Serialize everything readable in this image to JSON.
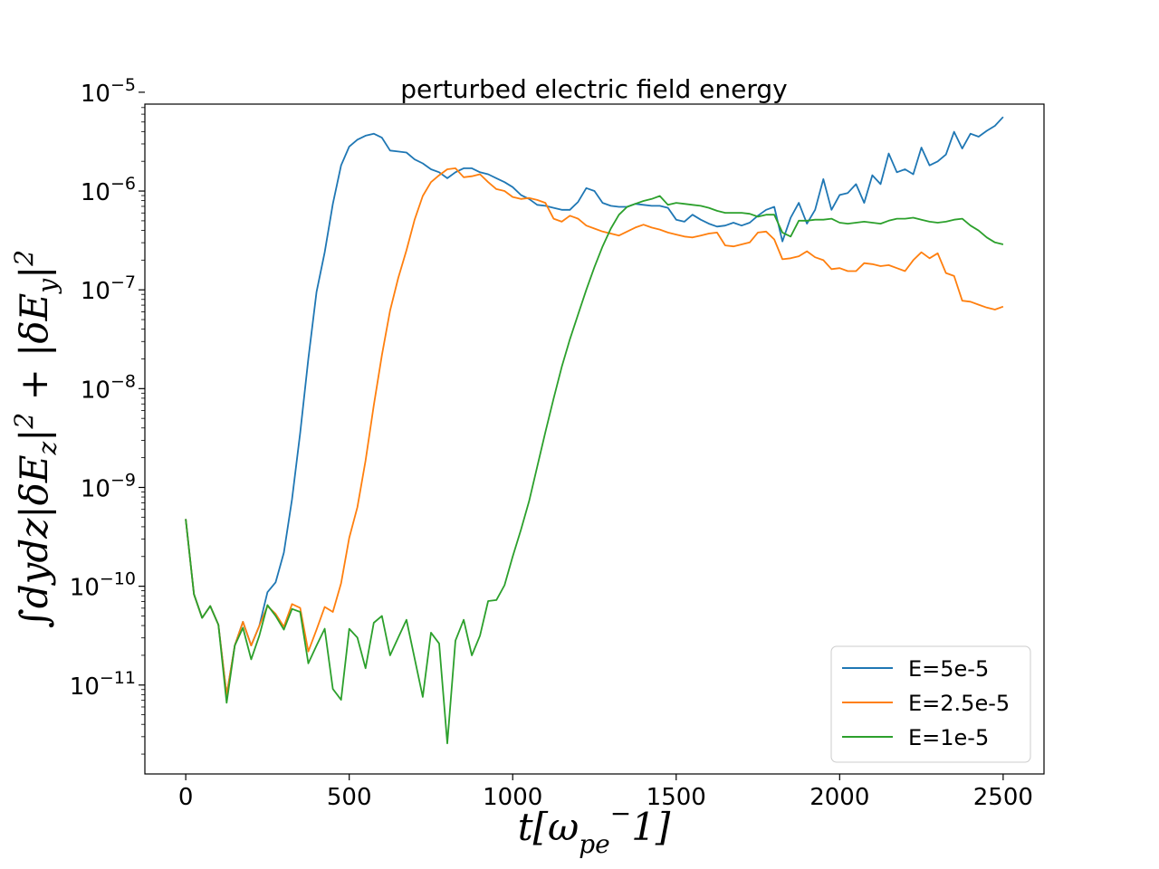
{
  "chart_data": {
    "type": "line",
    "title": "perturbed electric field energy",
    "xlabel": "t[ω_pe^-1]",
    "ylabel": "∫dydz|δE_z|² + |δE_y|²",
    "xlim": [
      -125,
      2625
    ],
    "ylim_log10": [
      -11.9,
      -5.12
    ],
    "yscale": "log",
    "grid": false,
    "legend_position": "lower-right",
    "x_ticks": [
      {
        "value": 0,
        "label": "0"
      },
      {
        "value": 500,
        "label": "500"
      },
      {
        "value": 1000,
        "label": "1000"
      },
      {
        "value": 1500,
        "label": "1500"
      },
      {
        "value": 2000,
        "label": "2000"
      },
      {
        "value": 2500,
        "label": "2500"
      }
    ],
    "y_ticks": [
      {
        "exp": -5,
        "label": "10",
        "sup": "−5"
      },
      {
        "exp": -6,
        "label": "10",
        "sup": "−6"
      },
      {
        "exp": -7,
        "label": "10",
        "sup": "−7"
      },
      {
        "exp": -8,
        "label": "10",
        "sup": "−8"
      },
      {
        "exp": -9,
        "label": "10",
        "sup": "−9"
      },
      {
        "exp": -10,
        "label": "10",
        "sup": "−10"
      },
      {
        "exp": -11,
        "label": "10",
        "sup": "−11"
      }
    ],
    "x": [
      0,
      25,
      50,
      75,
      100,
      125,
      150,
      175,
      200,
      225,
      250,
      275,
      300,
      325,
      350,
      375,
      400,
      425,
      450,
      475,
      500,
      525,
      550,
      575,
      600,
      625,
      650,
      675,
      700,
      725,
      750,
      775,
      800,
      825,
      850,
      875,
      900,
      925,
      950,
      975,
      1000,
      1025,
      1050,
      1075,
      1100,
      1125,
      1150,
      1175,
      1200,
      1225,
      1250,
      1275,
      1300,
      1325,
      1350,
      1375,
      1400,
      1425,
      1450,
      1475,
      1500,
      1525,
      1550,
      1575,
      1600,
      1625,
      1650,
      1675,
      1700,
      1725,
      1750,
      1775,
      1800,
      1825,
      1850,
      1875,
      1900,
      1925,
      1950,
      1975,
      2000,
      2025,
      2050,
      2075,
      2100,
      2125,
      2150,
      2175,
      2200,
      2225,
      2250,
      2275,
      2300,
      2325,
      2350,
      2375,
      2400,
      2425,
      2450,
      2475,
      2500
    ],
    "series": [
      {
        "name": "E=5e-5",
        "color": "#1f77b4",
        "log10_values": [
          -9.32,
          -10.08,
          -10.32,
          -10.2,
          -10.39,
          -11.1,
          -10.6,
          -10.36,
          -10.6,
          -10.4,
          -10.06,
          -9.96,
          -9.66,
          -9.12,
          -8.45,
          -7.7,
          -7.02,
          -6.62,
          -6.13,
          -5.74,
          -5.55,
          -5.48,
          -5.44,
          -5.42,
          -5.46,
          -5.59,
          -5.6,
          -5.61,
          -5.68,
          -5.72,
          -5.78,
          -5.81,
          -5.87,
          -5.81,
          -5.77,
          -5.77,
          -5.81,
          -5.83,
          -5.87,
          -5.91,
          -5.96,
          -6.04,
          -6.08,
          -6.14,
          -6.15,
          -6.17,
          -6.19,
          -6.19,
          -6.11,
          -5.97,
          -6.0,
          -6.12,
          -6.15,
          -6.16,
          -6.16,
          -6.13,
          -6.14,
          -6.15,
          -6.15,
          -6.17,
          -6.29,
          -6.31,
          -6.24,
          -6.29,
          -6.33,
          -6.36,
          -6.35,
          -6.32,
          -6.35,
          -6.32,
          -6.25,
          -6.19,
          -6.16,
          -6.51,
          -6.27,
          -6.12,
          -6.33,
          -6.19,
          -5.88,
          -6.19,
          -6.04,
          -6.02,
          -5.93,
          -6.12,
          -5.84,
          -5.93,
          -5.62,
          -5.81,
          -5.78,
          -5.83,
          -5.56,
          -5.74,
          -5.7,
          -5.63,
          -5.4,
          -5.57,
          -5.42,
          -5.45,
          -5.39,
          -5.34,
          -5.25
        ]
      },
      {
        "name": "E=2.5e-5",
        "color": "#ff7f0e",
        "log10_values": [
          -9.32,
          -10.08,
          -10.32,
          -10.2,
          -10.39,
          -11.1,
          -10.6,
          -10.36,
          -10.6,
          -10.4,
          -10.2,
          -10.28,
          -10.41,
          -10.18,
          -10.22,
          -10.66,
          -10.44,
          -10.21,
          -10.26,
          -9.97,
          -9.51,
          -9.2,
          -8.73,
          -8.17,
          -7.66,
          -7.21,
          -6.88,
          -6.6,
          -6.29,
          -6.05,
          -5.91,
          -5.84,
          -5.78,
          -5.77,
          -5.86,
          -5.85,
          -5.83,
          -5.91,
          -5.98,
          -6.0,
          -6.06,
          -6.08,
          -6.07,
          -6.09,
          -6.12,
          -6.28,
          -6.31,
          -6.25,
          -6.28,
          -6.35,
          -6.38,
          -6.41,
          -6.43,
          -6.45,
          -6.41,
          -6.37,
          -6.34,
          -6.37,
          -6.39,
          -6.42,
          -6.44,
          -6.46,
          -6.47,
          -6.45,
          -6.43,
          -6.42,
          -6.55,
          -6.56,
          -6.54,
          -6.52,
          -6.42,
          -6.41,
          -6.49,
          -6.69,
          -6.68,
          -6.66,
          -6.61,
          -6.67,
          -6.7,
          -6.79,
          -6.78,
          -6.81,
          -6.81,
          -6.73,
          -6.74,
          -6.76,
          -6.75,
          -6.78,
          -6.81,
          -6.7,
          -6.62,
          -6.68,
          -6.63,
          -6.83,
          -6.86,
          -7.11,
          -7.12,
          -7.15,
          -7.18,
          -7.2,
          -7.17
        ]
      },
      {
        "name": "E=1e-5",
        "color": "#2ca02c",
        "log10_values": [
          -9.32,
          -10.08,
          -10.32,
          -10.2,
          -10.39,
          -11.18,
          -10.6,
          -10.42,
          -10.74,
          -10.5,
          -10.19,
          -10.3,
          -10.44,
          -10.23,
          -10.26,
          -10.78,
          -10.6,
          -10.43,
          -11.04,
          -11.15,
          -10.43,
          -10.52,
          -10.83,
          -10.37,
          -10.3,
          -10.7,
          -10.52,
          -10.34,
          -10.73,
          -11.12,
          -10.47,
          -10.58,
          -11.59,
          -10.55,
          -10.34,
          -10.7,
          -10.5,
          -10.15,
          -10.14,
          -9.99,
          -9.7,
          -9.43,
          -9.14,
          -8.79,
          -8.44,
          -8.1,
          -7.78,
          -7.5,
          -7.25,
          -7.0,
          -6.77,
          -6.56,
          -6.38,
          -6.24,
          -6.16,
          -6.13,
          -6.1,
          -6.08,
          -6.05,
          -6.14,
          -6.12,
          -6.13,
          -6.14,
          -6.15,
          -6.17,
          -6.2,
          -6.22,
          -6.22,
          -6.22,
          -6.23,
          -6.26,
          -6.24,
          -6.24,
          -6.42,
          -6.46,
          -6.3,
          -6.3,
          -6.29,
          -6.29,
          -6.28,
          -6.32,
          -6.33,
          -6.32,
          -6.31,
          -6.32,
          -6.33,
          -6.3,
          -6.28,
          -6.28,
          -6.27,
          -6.29,
          -6.31,
          -6.32,
          -6.31,
          -6.29,
          -6.28,
          -6.35,
          -6.4,
          -6.47,
          -6.52,
          -6.54
        ]
      }
    ]
  }
}
